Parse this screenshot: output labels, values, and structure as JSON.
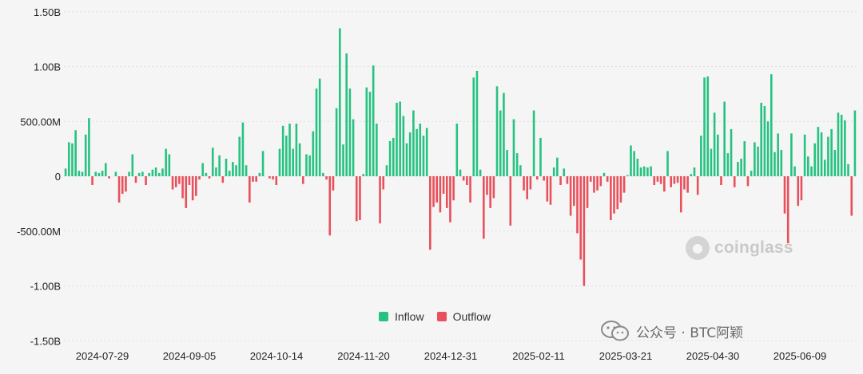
{
  "colors": {
    "inflow": "#26c281",
    "outflow": "#e8505b",
    "grid": "#dedede"
  },
  "watermark": "coinglass",
  "footer_label": "公众号 · BTC阿颖",
  "chart_data": {
    "type": "bar",
    "title": "",
    "xlabel": "",
    "ylabel": "",
    "ylim": [
      -1.5,
      1.5
    ],
    "y_ticks": [
      {
        "value": 1.5,
        "label": "1.50B"
      },
      {
        "value": 1.0,
        "label": "1.00B"
      },
      {
        "value": 0.5,
        "label": "500.00M"
      },
      {
        "value": 0.0,
        "label": "0"
      },
      {
        "value": -0.5,
        "label": "-500.00M"
      },
      {
        "value": -1.0,
        "label": "-1.00B"
      },
      {
        "value": -1.5,
        "label": "-1.50B"
      }
    ],
    "x_tick_labels": [
      "2024-07-29",
      "2024-09-05",
      "2024-10-14",
      "2024-11-20",
      "2024-12-31",
      "2025-02-11",
      "2025-03-21",
      "2025-04-30",
      "2025-06-09"
    ],
    "legend": {
      "position": "bottom",
      "items": [
        {
          "name": "Inflow",
          "color": "#26c281"
        },
        {
          "name": "Outflow",
          "color": "#e8505b"
        }
      ]
    },
    "unit": "USD (billions)",
    "values": [
      0.07,
      0.31,
      0.3,
      0.42,
      0.05,
      0.04,
      0.38,
      0.53,
      -0.08,
      0.04,
      0.03,
      0.05,
      0.12,
      -0.02,
      0,
      0.04,
      -0.24,
      -0.16,
      -0.14,
      0.04,
      0.2,
      -0.06,
      0.03,
      0.04,
      -0.08,
      0.03,
      0.06,
      0.08,
      0.03,
      0.07,
      0.25,
      0.2,
      -0.12,
      -0.1,
      -0.07,
      -0.2,
      -0.29,
      -0.08,
      -0.22,
      -0.18,
      -0.03,
      0.12,
      0.03,
      -0.02,
      0.26,
      0.08,
      0.19,
      -0.06,
      0.16,
      0.05,
      0.13,
      0.1,
      0.36,
      0.49,
      0.1,
      -0.24,
      -0.05,
      -0.05,
      0.03,
      0.23,
      0,
      -0.02,
      -0.03,
      -0.08,
      0.25,
      0.46,
      0.37,
      0.48,
      0.25,
      0.48,
      0.3,
      -0.07,
      0.2,
      0.19,
      0.41,
      0.8,
      0.89,
      0.03,
      -0.03,
      -0.54,
      -0.13,
      0.62,
      1.35,
      0.29,
      1.12,
      0.8,
      0.52,
      -0.41,
      -0.4,
      0.02,
      0.81,
      0.77,
      1.01,
      0.48,
      -0.43,
      -0.12,
      0.1,
      0.32,
      0.35,
      0.67,
      0.68,
      0.55,
      0.3,
      0.4,
      0.6,
      0.43,
      0.48,
      0.37,
      0.44,
      -0.67,
      -0.28,
      -0.24,
      -0.33,
      -0.16,
      -0.29,
      -0.42,
      -0.22,
      0.48,
      0.06,
      -0.04,
      -0.08,
      -0.24,
      0.9,
      0.96,
      0.06,
      -0.57,
      -0.17,
      -0.29,
      -0.2,
      0.82,
      0.6,
      0.76,
      0.24,
      -0.45,
      0.52,
      0.21,
      0.1,
      -0.13,
      -0.21,
      -0.12,
      0.6,
      -0.03,
      0.35,
      -0.04,
      -0.23,
      -0.26,
      0.08,
      0.17,
      -0.08,
      0.07,
      -0.07,
      -0.36,
      -0.27,
      -0.52,
      -0.76,
      -1.0,
      -0.29,
      -0.05,
      -0.15,
      -0.13,
      -0.09,
      0.03,
      -0.05,
      -0.4,
      -0.34,
      -0.3,
      -0.24,
      -0.15,
      0.01,
      0.28,
      0.23,
      0.16,
      0.08,
      0.09,
      0.08,
      0.09,
      -0.08,
      -0.05,
      -0.07,
      -0.14,
      0.23,
      -0.1,
      -0.07,
      -0.06,
      -0.33,
      -0.12,
      -0.15,
      0.02,
      0.08,
      -0.17,
      0.37,
      0.9,
      0.91,
      0.25,
      0.58,
      0.38,
      -0.08,
      0.68,
      0.21,
      0.43,
      -0.1,
      0.13,
      0.16,
      0.32,
      -0.09,
      0.05,
      0.31,
      0.27,
      0.67,
      0.64,
      0.5,
      0.93,
      0.22,
      0.39,
      0.24,
      -0.34,
      -0.61,
      0.39,
      0.09,
      -0.27,
      -0.22,
      0.38,
      0.18,
      0.09,
      0.3,
      0.45,
      0.4,
      0.15,
      0.36,
      0.43,
      0.24,
      0.58,
      0.56,
      0.51,
      0.11,
      -0.36,
      0.6
    ]
  }
}
